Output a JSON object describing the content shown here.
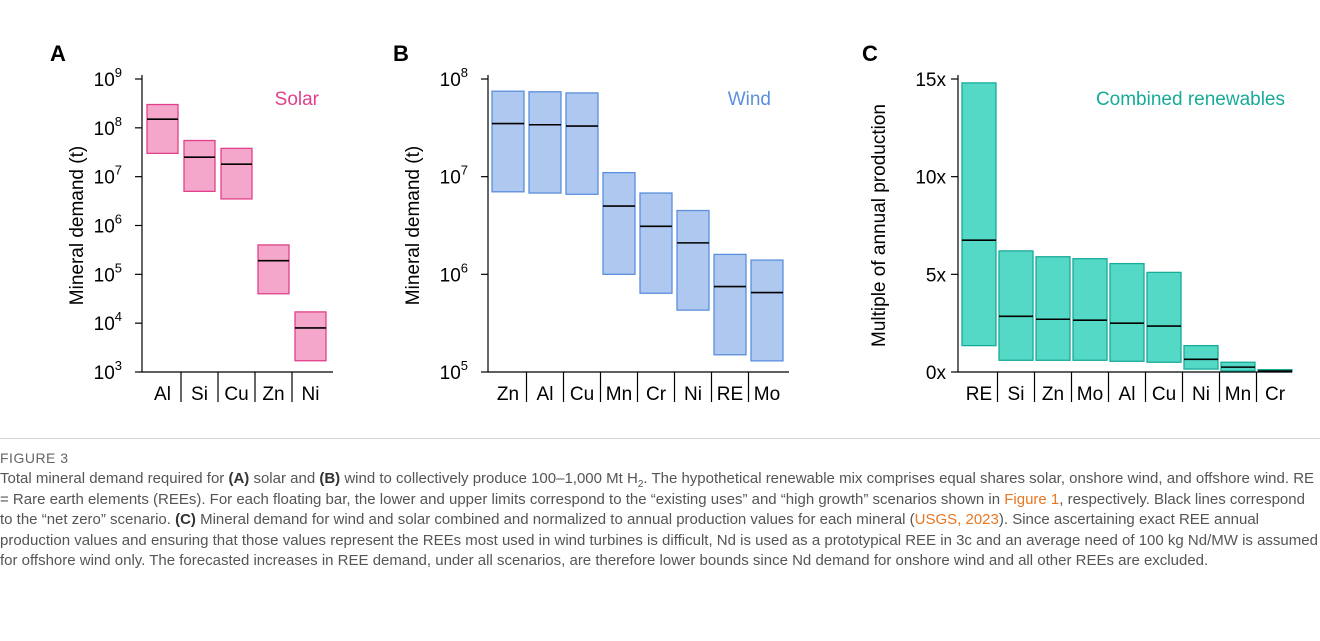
{
  "figure_label": "FIGURE 3",
  "caption": {
    "t1": "Total mineral demand required for ",
    "b1": "(A)",
    "t2": " solar and ",
    "b2": "(B)",
    "t3": " wind to collectively produce 100–1,000 Mt H",
    "sub": "2",
    "t4": ". The hypothetical renewable mix comprises equal shares solar, onshore wind, and offshore wind. RE = Rare earth elements (REEs). For each floating bar, the lower and upper limits correspond to the “existing uses” and “high growth” scenarios shown in ",
    "link1": "Figure 1",
    "t5": ", respectively. Black lines correspond to the “net zero” scenario. ",
    "b3": "(C)",
    "t6": " Mineral demand for wind and solar combined and normalized to annual production values for each mineral (",
    "link2": "USGS, 2023",
    "t7": "). Since ascertaining exact REE annual production values and ensuring that those values represent the REEs most used in wind turbines is difficult, Nd is used as a prototypical REE in 3c and an average need of 100 kg Nd/MW is assumed for offshore wind only. The forecasted increases in REE demand, under all scenarios, are therefore lower bounds since Nd demand for onshore wind and all other REEs are excluded."
  },
  "colors": {
    "solar": "#f5a6cb",
    "solar_edge": "#e0418a",
    "wind": "#aec8f0",
    "wind_edge": "#5c8fdc",
    "combined": "#55d9c7",
    "combined_edge": "#18ab98",
    "median": "#000000"
  },
  "chart_data": [
    {
      "type": "bar",
      "panel": "A",
      "title": "Solar",
      "ylabel": "Mineral demand (t)",
      "yscale": "log",
      "ylim": [
        1000,
        1000000000
      ],
      "yticks": [
        1000,
        10000,
        100000,
        1000000,
        10000000,
        100000000,
        1000000000
      ],
      "ytick_labels": [
        [
          "10",
          "3"
        ],
        [
          "10",
          "4"
        ],
        [
          "10",
          "5"
        ],
        [
          "10",
          "6"
        ],
        [
          "10",
          "7"
        ],
        [
          "10",
          "8"
        ],
        [
          "10",
          "9"
        ]
      ],
      "categories": [
        "Al",
        "Si",
        "Cu",
        "Zn",
        "Ni"
      ],
      "series": [
        {
          "low": 30000000,
          "high": 300000000,
          "mid": 150000000
        },
        {
          "low": 5000000,
          "high": 55000000,
          "mid": 25000000
        },
        {
          "low": 3500000,
          "high": 38000000,
          "mid": 18000000
        },
        {
          "low": 40000,
          "high": 400000,
          "mid": 190000
        },
        {
          "low": 1700,
          "high": 17000,
          "mid": 8000
        }
      ]
    },
    {
      "type": "bar",
      "panel": "B",
      "title": "Wind",
      "ylabel": "Mineral demand (t)",
      "yscale": "log",
      "ylim": [
        100000,
        100000000
      ],
      "yticks": [
        100000,
        1000000,
        10000000,
        100000000
      ],
      "ytick_labels": [
        [
          "10",
          "5"
        ],
        [
          "10",
          "6"
        ],
        [
          "10",
          "7"
        ],
        [
          "10",
          "8"
        ]
      ],
      "categories": [
        "Zn",
        "Al",
        "Cu",
        "Mn",
        "Cr",
        "Ni",
        "RE",
        "Mo"
      ],
      "series": [
        {
          "low": 7000000,
          "high": 75000000,
          "mid": 35000000
        },
        {
          "low": 6800000,
          "high": 74000000,
          "mid": 34000000
        },
        {
          "low": 6600000,
          "high": 72000000,
          "mid": 33000000
        },
        {
          "low": 1000000,
          "high": 11000000,
          "mid": 5000000
        },
        {
          "low": 640000,
          "high": 6800000,
          "mid": 3100000
        },
        {
          "low": 430000,
          "high": 4500000,
          "mid": 2100000
        },
        {
          "low": 150000,
          "high": 1600000,
          "mid": 750000
        },
        {
          "low": 130000,
          "high": 1400000,
          "mid": 650000
        }
      ]
    },
    {
      "type": "bar",
      "panel": "C",
      "title": "Combined renewables",
      "ylabel": "Multiple of annual production",
      "yscale": "linear",
      "ylim": [
        0,
        15
      ],
      "yticks": [
        0,
        5,
        10,
        15
      ],
      "ytick_labels": [
        [
          "0x",
          ""
        ],
        [
          "5x",
          ""
        ],
        [
          "10x",
          ""
        ],
        [
          "15x",
          ""
        ]
      ],
      "categories": [
        "RE",
        "Si",
        "Zn",
        "Mo",
        "Al",
        "Cu",
        "Ni",
        "Mn",
        "Cr"
      ],
      "series": [
        {
          "low": 1.35,
          "high": 14.8,
          "mid": 6.75
        },
        {
          "low": 0.6,
          "high": 6.2,
          "mid": 2.85
        },
        {
          "low": 0.6,
          "high": 5.9,
          "mid": 2.7
        },
        {
          "low": 0.6,
          "high": 5.8,
          "mid": 2.65
        },
        {
          "low": 0.55,
          "high": 5.55,
          "mid": 2.5
        },
        {
          "low": 0.5,
          "high": 5.1,
          "mid": 2.35
        },
        {
          "low": 0.15,
          "high": 1.35,
          "mid": 0.65
        },
        {
          "low": 0.05,
          "high": 0.5,
          "mid": 0.25
        },
        {
          "low": 0.01,
          "high": 0.12,
          "mid": 0.05
        }
      ]
    }
  ]
}
